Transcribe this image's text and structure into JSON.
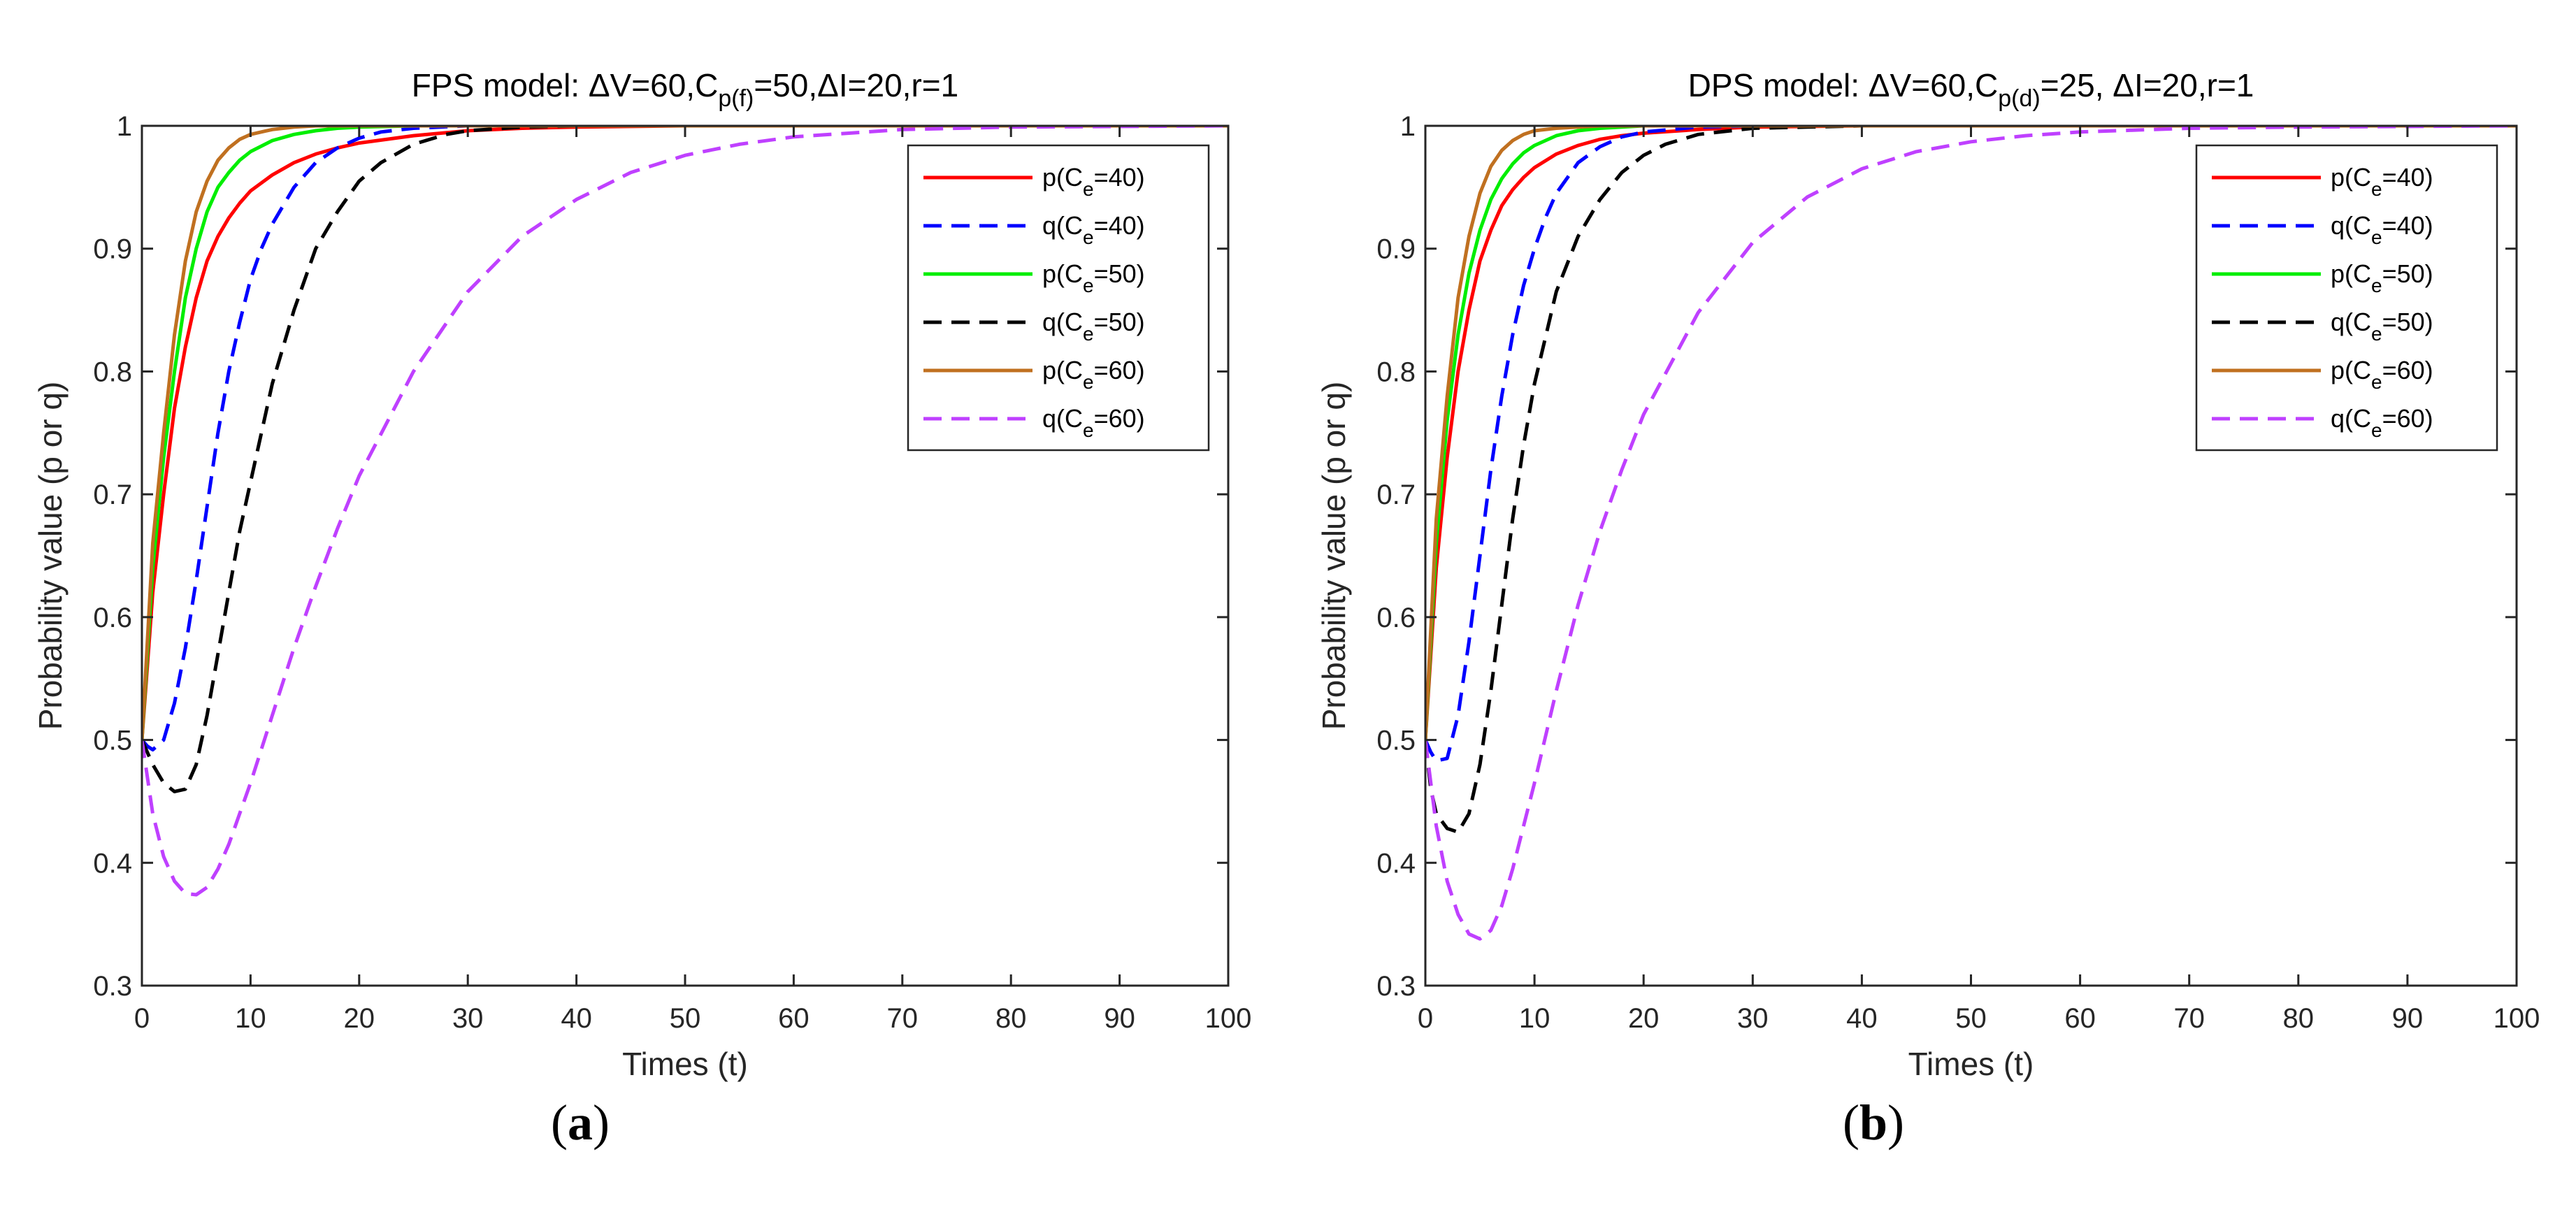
{
  "chart_data": [
    {
      "panel": "a",
      "type": "line",
      "caption_open": "(",
      "caption_letter": "a",
      "caption_close": ")",
      "title": {
        "prefix": "FPS model: ΔV=60,C",
        "sub": "p(f)",
        "suffix": "=50,ΔI=20,r=1"
      },
      "xlabel": "Times (t)",
      "ylabel": "Probability value (p or q)",
      "xlim": [
        0,
        100
      ],
      "ylim": [
        0.3,
        1.0
      ],
      "xticks": [
        "0",
        "10",
        "20",
        "30",
        "40",
        "50",
        "60",
        "70",
        "80",
        "90",
        "100"
      ],
      "yticks": [
        "0.3",
        "0.4",
        "0.5",
        "0.6",
        "0.7",
        "0.8",
        "0.9",
        "1"
      ],
      "legend_position": "top-right",
      "series": [
        {
          "name": "p(Ce=40)",
          "legend": {
            "pre": "p(C",
            "sub": "e",
            "post": "=40)"
          },
          "color": "#ff0000",
          "dash": false,
          "x": [
            0,
            0.5,
            1,
            2,
            3,
            4,
            5,
            6,
            7,
            8,
            9,
            10,
            12,
            14,
            16,
            18,
            20,
            25,
            30,
            35,
            40,
            50,
            100
          ],
          "y": [
            0.5,
            0.56,
            0.62,
            0.7,
            0.77,
            0.82,
            0.86,
            0.89,
            0.91,
            0.925,
            0.937,
            0.947,
            0.96,
            0.97,
            0.977,
            0.982,
            0.986,
            0.992,
            0.996,
            0.998,
            0.999,
            1.0,
            1.0
          ]
        },
        {
          "name": "q(Ce=40)",
          "legend": {
            "pre": "q(C",
            "sub": "e",
            "post": "=40)"
          },
          "color": "#0000ff",
          "dash": true,
          "x": [
            0,
            0.5,
            1,
            2,
            3,
            4,
            5,
            6,
            7,
            8,
            9,
            10,
            11,
            12,
            14,
            16,
            18,
            20,
            22,
            25,
            30,
            40,
            100
          ],
          "y": [
            0.5,
            0.495,
            0.492,
            0.5,
            0.53,
            0.575,
            0.63,
            0.69,
            0.75,
            0.8,
            0.84,
            0.875,
            0.9,
            0.92,
            0.95,
            0.97,
            0.982,
            0.99,
            0.995,
            0.998,
            1.0,
            1.0,
            1.0
          ]
        },
        {
          "name": "p(Ce=50)",
          "legend": {
            "pre": "p(C",
            "sub": "e",
            "post": "=50)"
          },
          "color": "#00ee00",
          "dash": false,
          "x": [
            0,
            0.5,
            1,
            2,
            3,
            4,
            5,
            6,
            7,
            8,
            9,
            10,
            12,
            14,
            16,
            18,
            20,
            25,
            30,
            40,
            100
          ],
          "y": [
            0.5,
            0.57,
            0.64,
            0.73,
            0.8,
            0.86,
            0.9,
            0.93,
            0.95,
            0.962,
            0.972,
            0.979,
            0.988,
            0.993,
            0.996,
            0.998,
            0.999,
            1.0,
            1.0,
            1.0,
            1.0
          ]
        },
        {
          "name": "q(Ce=50)",
          "legend": {
            "pre": "q(C",
            "sub": "e",
            "post": "=50)"
          },
          "color": "#000000",
          "dash": true,
          "x": [
            0,
            1,
            2,
            3,
            4,
            5,
            6,
            7,
            8,
            9,
            10,
            12,
            14,
            16,
            18,
            20,
            22,
            25,
            28,
            30,
            35,
            40,
            50,
            100
          ],
          "y": [
            0.5,
            0.48,
            0.465,
            0.458,
            0.46,
            0.48,
            0.52,
            0.57,
            0.62,
            0.67,
            0.71,
            0.79,
            0.85,
            0.9,
            0.93,
            0.955,
            0.97,
            0.985,
            0.993,
            0.996,
            0.999,
            1.0,
            1.0,
            1.0
          ]
        },
        {
          "name": "p(Ce=60)",
          "legend": {
            "pre": "p(C",
            "sub": "e",
            "post": "=60)"
          },
          "color": "#c07020",
          "dash": false,
          "x": [
            0,
            0.5,
            1,
            2,
            3,
            4,
            5,
            6,
            7,
            8,
            9,
            10,
            12,
            14,
            16,
            20,
            30,
            100
          ],
          "y": [
            0.5,
            0.58,
            0.66,
            0.75,
            0.83,
            0.89,
            0.93,
            0.955,
            0.972,
            0.982,
            0.989,
            0.993,
            0.997,
            0.999,
            1.0,
            1.0,
            1.0,
            1.0
          ]
        },
        {
          "name": "q(Ce=60)",
          "legend": {
            "pre": "q(C",
            "sub": "e",
            "post": "=60)"
          },
          "color": "#bf40ff",
          "dash": true,
          "x": [
            0,
            1,
            2,
            3,
            4,
            5,
            6,
            7,
            8,
            10,
            12,
            14,
            16,
            18,
            20,
            25,
            30,
            35,
            40,
            45,
            50,
            55,
            60,
            70,
            80,
            100
          ],
          "y": [
            0.5,
            0.44,
            0.405,
            0.385,
            0.375,
            0.374,
            0.38,
            0.395,
            0.415,
            0.465,
            0.52,
            0.575,
            0.625,
            0.672,
            0.715,
            0.8,
            0.865,
            0.91,
            0.94,
            0.962,
            0.976,
            0.985,
            0.991,
            0.997,
            0.999,
            1.0
          ]
        }
      ]
    },
    {
      "panel": "b",
      "type": "line",
      "caption_open": "(",
      "caption_letter": "b",
      "caption_close": ")",
      "title": {
        "prefix": "DPS model: ΔV=60,C",
        "sub": "p(d)",
        "suffix": "=25, ΔI=20,r=1"
      },
      "xlabel": "Times (t)",
      "ylabel": "Probability value (p or q)",
      "xlim": [
        0,
        100
      ],
      "ylim": [
        0.3,
        1.0
      ],
      "xticks": [
        "0",
        "10",
        "20",
        "30",
        "40",
        "50",
        "60",
        "70",
        "80",
        "90",
        "100"
      ],
      "yticks": [
        "0.3",
        "0.4",
        "0.5",
        "0.6",
        "0.7",
        "0.8",
        "0.9",
        "1"
      ],
      "legend_position": "top-right",
      "series": [
        {
          "name": "p(Ce=40)",
          "legend": {
            "pre": "p(C",
            "sub": "e",
            "post": "=40)"
          },
          "color": "#ff0000",
          "dash": false,
          "x": [
            0,
            0.5,
            1,
            2,
            3,
            4,
            5,
            6,
            7,
            8,
            9,
            10,
            12,
            14,
            16,
            18,
            20,
            25,
            30,
            40,
            100
          ],
          "y": [
            0.5,
            0.57,
            0.64,
            0.73,
            0.8,
            0.85,
            0.89,
            0.915,
            0.935,
            0.948,
            0.958,
            0.966,
            0.977,
            0.984,
            0.989,
            0.992,
            0.994,
            0.997,
            0.999,
            1.0,
            1.0
          ]
        },
        {
          "name": "q(Ce=40)",
          "legend": {
            "pre": "q(C",
            "sub": "e",
            "post": "=40)"
          },
          "color": "#0000ff",
          "dash": true,
          "x": [
            0,
            0.5,
            1,
            2,
            3,
            4,
            5,
            6,
            7,
            8,
            9,
            10,
            11,
            12,
            14,
            16,
            18,
            20,
            25,
            30,
            100
          ],
          "y": [
            0.5,
            0.49,
            0.483,
            0.485,
            0.52,
            0.58,
            0.65,
            0.72,
            0.78,
            0.83,
            0.87,
            0.9,
            0.925,
            0.945,
            0.97,
            0.983,
            0.991,
            0.995,
            0.999,
            1.0,
            1.0
          ]
        },
        {
          "name": "p(Ce=50)",
          "legend": {
            "pre": "p(C",
            "sub": "e",
            "post": "=50)"
          },
          "color": "#00ee00",
          "dash": false,
          "x": [
            0,
            0.5,
            1,
            2,
            3,
            4,
            5,
            6,
            7,
            8,
            9,
            10,
            12,
            14,
            16,
            18,
            20,
            25,
            30,
            100
          ],
          "y": [
            0.5,
            0.58,
            0.66,
            0.76,
            0.83,
            0.88,
            0.915,
            0.94,
            0.957,
            0.969,
            0.978,
            0.984,
            0.992,
            0.996,
            0.998,
            0.999,
            1.0,
            1.0,
            1.0,
            1.0
          ]
        },
        {
          "name": "q(Ce=50)",
          "legend": {
            "pre": "q(C",
            "sub": "e",
            "post": "=50)"
          },
          "color": "#000000",
          "dash": true,
          "x": [
            0,
            0.5,
            1,
            2,
            3,
            4,
            5,
            6,
            7,
            8,
            9,
            10,
            12,
            14,
            16,
            18,
            20,
            22,
            25,
            30,
            35,
            40,
            100
          ],
          "y": [
            0.5,
            0.46,
            0.44,
            0.428,
            0.425,
            0.44,
            0.48,
            0.54,
            0.61,
            0.68,
            0.74,
            0.79,
            0.865,
            0.91,
            0.94,
            0.962,
            0.976,
            0.985,
            0.993,
            0.998,
            0.999,
            1.0,
            1.0
          ]
        },
        {
          "name": "p(Ce=60)",
          "legend": {
            "pre": "p(C",
            "sub": "e",
            "post": "=60)"
          },
          "color": "#c07020",
          "dash": false,
          "x": [
            0,
            0.5,
            1,
            2,
            3,
            4,
            5,
            6,
            7,
            8,
            9,
            10,
            12,
            14,
            16,
            20,
            30,
            100
          ],
          "y": [
            0.5,
            0.59,
            0.68,
            0.78,
            0.86,
            0.91,
            0.945,
            0.967,
            0.98,
            0.988,
            0.993,
            0.996,
            0.998,
            0.999,
            1.0,
            1.0,
            1.0,
            1.0
          ]
        },
        {
          "name": "q(Ce=60)",
          "legend": {
            "pre": "q(C",
            "sub": "e",
            "post": "=60)"
          },
          "color": "#bf40ff",
          "dash": true,
          "x": [
            0,
            1,
            2,
            3,
            4,
            5,
            6,
            7,
            8,
            10,
            12,
            14,
            16,
            18,
            20,
            25,
            30,
            35,
            40,
            45,
            50,
            55,
            60,
            70,
            80,
            100
          ],
          "y": [
            0.5,
            0.43,
            0.385,
            0.358,
            0.342,
            0.338,
            0.345,
            0.365,
            0.395,
            0.465,
            0.54,
            0.61,
            0.67,
            0.72,
            0.765,
            0.848,
            0.905,
            0.942,
            0.965,
            0.979,
            0.987,
            0.992,
            0.995,
            0.998,
            0.999,
            1.0
          ]
        }
      ]
    }
  ]
}
